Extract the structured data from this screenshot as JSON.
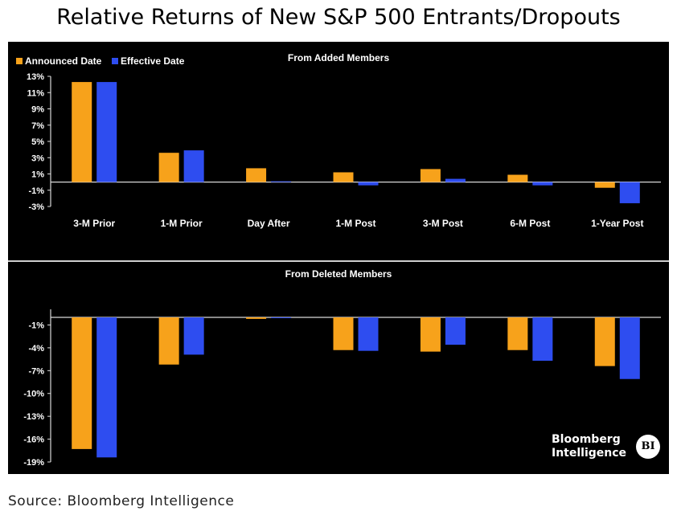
{
  "title": "Relative Returns of New S&P 500 Entrants/Dropouts",
  "source": "Source: Bloomberg Intelligence",
  "logo": {
    "line1": "Bloomberg",
    "line2": "Intelligence",
    "badge": "BI"
  },
  "colors": {
    "announced": "#F7A21B",
    "effective": "#2E4DF0",
    "background": "#000000",
    "text": "#FFFFFF"
  },
  "chart_data": [
    {
      "type": "bar",
      "title": "From Added Members",
      "categories": [
        "3-M Prior",
        "1-M Prior",
        "Day After",
        "1-M Post",
        "3-M Post",
        "6-M Post",
        "1-Year Post"
      ],
      "series": [
        {
          "name": "Announced Date",
          "values": [
            12.3,
            3.6,
            1.7,
            1.2,
            1.6,
            0.9,
            -0.7
          ]
        },
        {
          "name": "Effective Date",
          "values": [
            12.3,
            3.9,
            0.1,
            -0.4,
            0.4,
            -0.4,
            -2.6
          ]
        }
      ],
      "yticks": [
        13,
        11,
        9,
        7,
        5,
        3,
        1,
        -1,
        -3
      ],
      "ytick_labels": [
        "13%",
        "11%",
        "9%",
        "7%",
        "5%",
        "3%",
        "1%",
        "-1%",
        "-3%"
      ],
      "ylim": [
        -3,
        13
      ],
      "legend_position": "top-left"
    },
    {
      "type": "bar",
      "title": "From Deleted Members",
      "categories": [
        "3-M Prior",
        "1-M Prior",
        "Day After",
        "1-M Post",
        "3-M Post",
        "6-M Post",
        "1-Year Post"
      ],
      "series": [
        {
          "name": "Announced Date",
          "values": [
            -17.3,
            -6.2,
            -0.2,
            -4.3,
            -4.5,
            -4.3,
            -6.4
          ]
        },
        {
          "name": "Effective Date",
          "values": [
            -18.4,
            -4.9,
            0.0,
            -4.4,
            -3.6,
            -5.7,
            -8.1
          ]
        }
      ],
      "yticks": [
        -1,
        -4,
        -7,
        -10,
        -13,
        -16,
        -19
      ],
      "ytick_labels": [
        "-1%",
        "-4%",
        "-7%",
        "-10%",
        "-13%",
        "-16%",
        "-19%"
      ],
      "ylim": [
        -19,
        0
      ]
    }
  ]
}
